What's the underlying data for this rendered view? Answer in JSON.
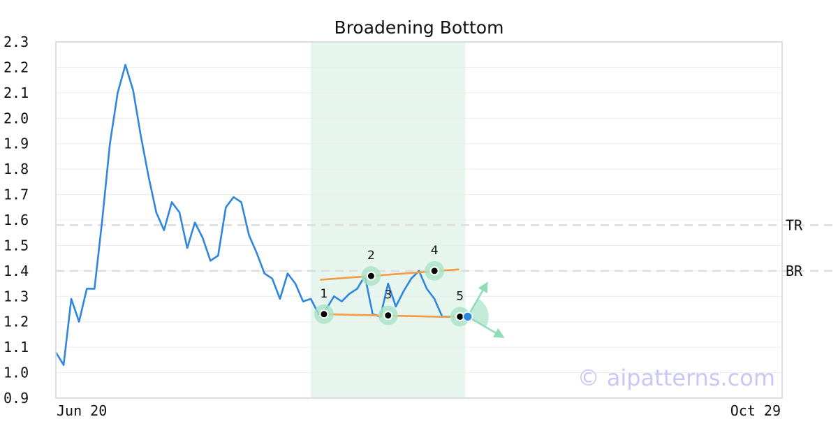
{
  "chart_data": {
    "type": "line",
    "title": "Broadening Bottom",
    "xlabel": "",
    "ylabel": "",
    "ylim": [
      0.9,
      2.3
    ],
    "yticks": [
      "2.3",
      "2.2",
      "2.1",
      "2.0",
      "1.9",
      "1.8",
      "1.7",
      "1.6",
      "1.5",
      "1.4",
      "1.3",
      "1.2",
      "1.1",
      "1.0",
      "0.9"
    ],
    "x_labels": {
      "start": "Jun 20",
      "end": "Oct 29"
    },
    "grid": true,
    "series": [
      {
        "color": "#2e86de",
        "values": [
          1.08,
          1.03,
          1.29,
          1.2,
          1.33,
          1.33,
          1.6,
          1.9,
          2.1,
          2.21,
          2.11,
          1.93,
          1.77,
          1.63,
          1.56,
          1.67,
          1.63,
          1.49,
          1.59,
          1.53,
          1.44,
          1.46,
          1.65,
          1.69,
          1.67,
          1.54,
          1.47,
          1.39,
          1.37,
          1.29,
          1.39,
          1.35,
          1.28,
          1.29,
          1.23,
          1.25,
          1.3,
          1.28,
          1.31,
          1.33,
          1.38,
          1.23,
          1.22,
          1.35,
          1.26,
          1.32,
          1.37,
          1.4,
          1.33,
          1.29,
          1.22,
          1.22
        ]
      }
    ],
    "x_total_points": 95,
    "highlight_range": [
      33,
      53
    ],
    "reference_lines": [
      {
        "label": "TR",
        "value": 1.58
      },
      {
        "label": "BR",
        "value": 1.4
      }
    ],
    "trendlines": [
      {
        "from": [
          34.2,
          1.365
        ],
        "to": [
          52.2,
          1.406
        ]
      },
      {
        "from": [
          34.7,
          1.23
        ],
        "to": [
          52.3,
          1.218
        ]
      }
    ],
    "pattern_points": [
      {
        "label": "1",
        "x": 34.7,
        "y": 1.23
      },
      {
        "label": "2",
        "x": 40.8,
        "y": 1.38
      },
      {
        "label": "3",
        "x": 43.0,
        "y": 1.225
      },
      {
        "label": "4",
        "x": 49.0,
        "y": 1.4
      },
      {
        "label": "5",
        "x": 52.3,
        "y": 1.22
      }
    ],
    "breakout_point": {
      "x": 53.3,
      "y": 1.22
    },
    "colors": {
      "line": "#2e86de",
      "trendline": "#f39c45",
      "highlight": "#e6f5ee",
      "marker_halo": "#a9e3c6",
      "arrow": "#8fdcb6",
      "reference": "#dddddd",
      "breakout": "#2e86de"
    }
  },
  "watermark": "© aipatterns.com"
}
